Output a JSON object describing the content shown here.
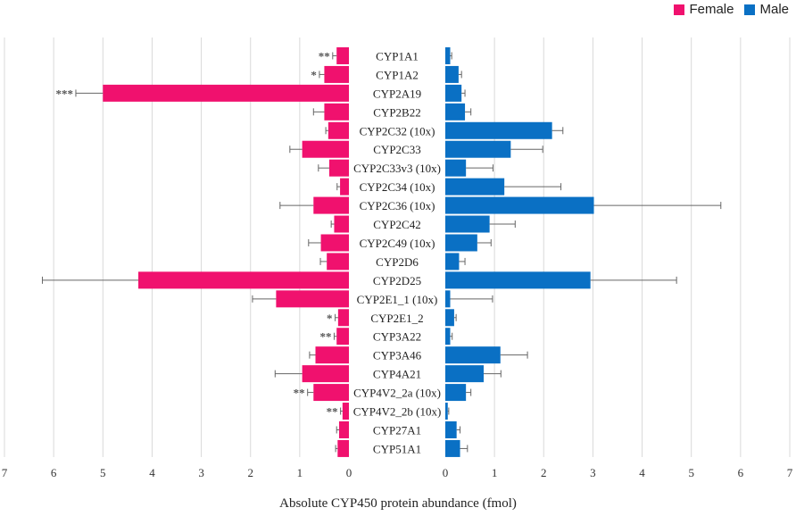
{
  "chart_data": {
    "type": "bar",
    "orientation": "horizontal-butterfly",
    "xlabel": "Absolute CYP450 protein abundance (fmol)",
    "xlim": [
      0,
      7
    ],
    "x_ticks": [
      7,
      6,
      5,
      4,
      3,
      2,
      1,
      0
    ],
    "x_ticks_right": [
      0,
      1,
      2,
      3,
      4,
      5,
      6,
      7
    ],
    "grid": true,
    "legend_position": "top-right",
    "categories": [
      "CYP1A1",
      "CYP1A2",
      "CYP2A19",
      "CYP2B22",
      "CYP2C32 (10x)",
      "CYP2C33",
      "CYP2C33v3 (10x)",
      "CYP2C34 (10x)",
      "CYP2C36 (10x)",
      "CYP2C42",
      "CYP2C49 (10x)",
      "CYP2D6",
      "CYP2D25",
      "CYP2E1_1 (10x)",
      "CYP2E1_2",
      "CYP3A22",
      "CYP3A46",
      "CYP4A21",
      "CYP4V2_2a (10x)",
      "CYP4V2_2b (10x)",
      "CYP27A1",
      "CYP51A1"
    ],
    "series": [
      {
        "name": "Female",
        "color": "#f0116e",
        "values": [
          0.25,
          0.5,
          5.0,
          0.5,
          0.42,
          0.95,
          0.4,
          0.18,
          0.72,
          0.3,
          0.57,
          0.45,
          4.28,
          1.48,
          0.22,
          0.25,
          0.68,
          0.95,
          0.72,
          0.13,
          0.2,
          0.23
        ],
        "errors": [
          0.08,
          0.1,
          0.55,
          0.22,
          0.05,
          0.25,
          0.22,
          0.06,
          0.68,
          0.06,
          0.25,
          0.13,
          1.95,
          0.48,
          0.06,
          0.05,
          0.12,
          0.55,
          0.12,
          0.04,
          0.05,
          0.04
        ],
        "significance": [
          "**",
          "*",
          "***",
          "",
          "",
          "",
          "",
          "",
          "",
          "",
          "",
          "",
          "",
          "",
          "*",
          "**",
          "",
          "",
          "**",
          "**",
          "",
          ""
        ]
      },
      {
        "name": "Male",
        "color": "#0a70c4",
        "values": [
          0.1,
          0.27,
          0.33,
          0.4,
          2.17,
          1.33,
          0.42,
          1.2,
          3.02,
          0.9,
          0.65,
          0.28,
          2.95,
          0.1,
          0.18,
          0.1,
          1.12,
          0.78,
          0.42,
          0.05,
          0.23,
          0.3
        ],
        "errors": [
          0.03,
          0.06,
          0.07,
          0.12,
          0.22,
          0.65,
          0.55,
          1.15,
          2.58,
          0.52,
          0.28,
          0.12,
          1.75,
          0.86,
          0.04,
          0.04,
          0.55,
          0.35,
          0.1,
          0.02,
          0.07,
          0.15
        ]
      }
    ]
  }
}
